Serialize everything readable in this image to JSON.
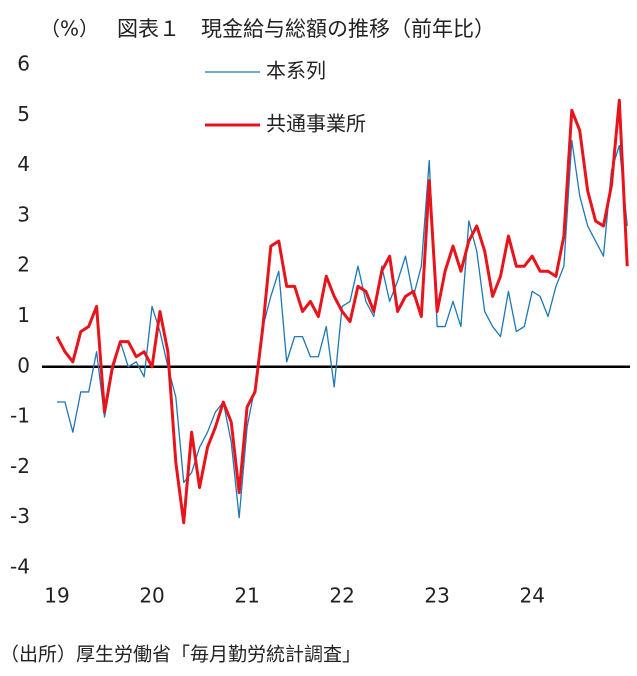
{
  "chart_data": {
    "type": "line",
    "title": "図表１　現金給与総額の推移（前年比）",
    "y_label": "（%）",
    "note": "（出所）厚生労働省「毎月勤労統計調査」",
    "categories": [
      "19",
      null,
      null,
      null,
      null,
      null,
      null,
      null,
      null,
      null,
      null,
      null,
      "20",
      null,
      null,
      null,
      null,
      null,
      null,
      null,
      null,
      null,
      null,
      null,
      "21",
      null,
      null,
      null,
      null,
      null,
      null,
      null,
      null,
      null,
      null,
      null,
      "22",
      null,
      null,
      null,
      null,
      null,
      null,
      null,
      null,
      null,
      null,
      null,
      "23",
      null,
      null,
      null,
      null,
      null,
      null,
      null,
      null,
      null,
      null,
      null,
      "24",
      null,
      null,
      null,
      null,
      null,
      null,
      null,
      null,
      null,
      null,
      null,
      null
    ],
    "series": [
      {
        "name": "本系列",
        "color": "#1f77b4",
        "width": 1.3,
        "values": [
          -0.7,
          -0.7,
          -1.3,
          -0.5,
          -0.5,
          0.3,
          -1.0,
          -0.1,
          0.5,
          0.0,
          0.1,
          -0.2,
          1.2,
          0.7,
          0.0,
          -0.6,
          -2.3,
          -2.1,
          -1.6,
          -1.3,
          -0.9,
          -0.7,
          -1.5,
          -3.0,
          -1.2,
          -0.4,
          0.8,
          1.4,
          1.9,
          0.1,
          0.6,
          0.6,
          0.2,
          0.2,
          0.8,
          -0.4,
          1.2,
          1.3,
          2.0,
          1.3,
          1.0,
          2.0,
          1.3,
          1.7,
          2.2,
          1.4,
          2.0,
          4.1,
          0.8,
          0.8,
          1.3,
          0.8,
          2.9,
          2.3,
          1.1,
          0.8,
          0.6,
          1.5,
          0.7,
          0.8,
          1.5,
          1.4,
          1.0,
          1.6,
          2.0,
          4.5,
          3.4,
          2.8,
          2.5,
          2.2,
          3.9,
          4.4,
          2.8
        ]
      },
      {
        "name": "共通事業所",
        "color": "#e8141c",
        "width": 3,
        "values": [
          0.6,
          0.3,
          0.1,
          0.7,
          0.8,
          1.2,
          -0.9,
          0.0,
          0.5,
          0.5,
          0.2,
          0.3,
          0.0,
          1.1,
          0.3,
          -1.9,
          -3.1,
          -1.3,
          -2.4,
          -1.6,
          -1.2,
          -0.7,
          -1.1,
          -2.5,
          -0.8,
          -0.5,
          0.8,
          2.4,
          2.5,
          1.6,
          1.6,
          1.1,
          1.3,
          1.0,
          1.8,
          1.4,
          1.1,
          0.9,
          1.6,
          1.5,
          1.1,
          1.9,
          2.2,
          1.1,
          1.4,
          1.5,
          1.0,
          3.7,
          1.1,
          1.9,
          2.4,
          1.9,
          2.5,
          2.8,
          2.3,
          1.4,
          1.8,
          2.6,
          2.0,
          2.0,
          2.2,
          1.9,
          1.9,
          1.8,
          2.6,
          5.1,
          4.7,
          3.5,
          2.9,
          2.8,
          3.6,
          5.3,
          2.0
        ]
      }
    ],
    "ylim": [
      -4,
      6
    ],
    "yticks": [
      -4,
      -3,
      -2,
      -1,
      0,
      1,
      2,
      3,
      4,
      5,
      6
    ],
    "zero_line": true,
    "legend": "top"
  }
}
